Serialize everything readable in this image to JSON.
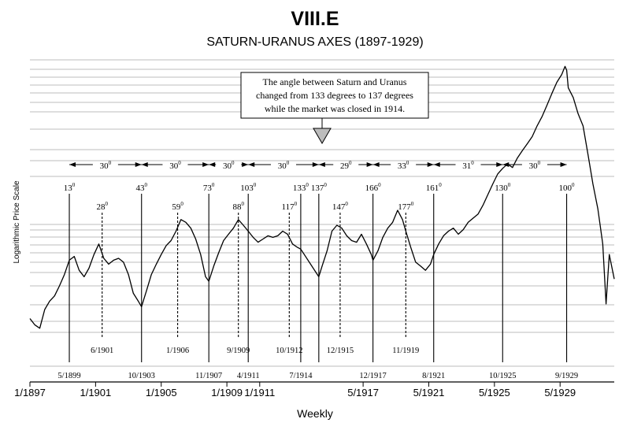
{
  "chart_data": {
    "type": "line",
    "title": "VIII.E",
    "subtitle": "SATURN-URANUS  AXES  (1897-1929)",
    "xlabel": "Weekly",
    "ylabel": "Logarithmic  Price  Scale",
    "y_scale": "log",
    "grid": "horizontal",
    "x_range": [
      1897.0,
      1932.6
    ],
    "x_ticks": [
      {
        "label": "1/1897",
        "x": 1897.0
      },
      {
        "label": "1/1901",
        "x": 1901.0
      },
      {
        "label": "1/1905",
        "x": 1905.0
      },
      {
        "label": "1/1909",
        "x": 1909.0
      },
      {
        "label": "1/1911",
        "x": 1911.0
      },
      {
        "label": "5/1917",
        "x": 1917.3
      },
      {
        "label": "5/1921",
        "x": 1921.3
      },
      {
        "label": "5/1925",
        "x": 1925.3
      },
      {
        "label": "5/1929",
        "x": 1929.3
      }
    ],
    "annotation": {
      "lines": [
        "The angle between Saturn and Uranus",
        "changed from 133 degrees to 137 degrees",
        "while the market was closed in 1914."
      ]
    },
    "intervals": [
      {
        "label": "30",
        "from": 1899.4,
        "to": 1903.8
      },
      {
        "label": "30",
        "from": 1903.8,
        "to": 1907.9
      },
      {
        "label": "30",
        "from": 1907.9,
        "to": 1910.3
      },
      {
        "label": "30",
        "from": 1910.3,
        "to": 1914.6
      },
      {
        "label": "29",
        "from": 1914.6,
        "to": 1917.9
      },
      {
        "label": "33",
        "from": 1917.9,
        "to": 1921.6
      },
      {
        "label": "31",
        "from": 1921.6,
        "to": 1925.8
      },
      {
        "label": "30",
        "from": 1925.8,
        "to": 1929.7
      }
    ],
    "solid_markers": [
      {
        "angle": "13",
        "date": "5/1899",
        "x": 1899.4
      },
      {
        "angle": "43",
        "date": "10/1903",
        "x": 1903.8
      },
      {
        "angle": "73",
        "date": "11/1907",
        "x": 1907.9
      },
      {
        "angle": "103",
        "date": "4/1911",
        "x": 1910.3
      },
      {
        "angle": "133",
        "date": "7/1914",
        "x": 1913.5
      },
      {
        "angle": "137",
        "date": "",
        "x": 1914.6
      },
      {
        "angle": "166",
        "date": "12/1917",
        "x": 1917.9
      },
      {
        "angle": "161",
        "date": "8/1921",
        "x": 1921.6
      },
      {
        "angle": "130",
        "date": "10/1925",
        "x": 1925.8
      },
      {
        "angle": "100",
        "date": "9/1929",
        "x": 1929.7
      }
    ],
    "dashed_markers": [
      {
        "angle": "28",
        "date": "6/1901",
        "x": 1901.4
      },
      {
        "angle": "59",
        "date": "1/1906",
        "x": 1906.0
      },
      {
        "angle": "88",
        "date": "9/1909",
        "x": 1909.7
      },
      {
        "angle": "117",
        "date": "10/1912",
        "x": 1912.8
      },
      {
        "angle": "147",
        "date": "12/1915",
        "x": 1915.9
      },
      {
        "angle": "177",
        "date": "11/1919",
        "x": 1919.9
      }
    ],
    "series": [
      {
        "x": [
          1897.0,
          1897.3,
          1897.6,
          1897.9,
          1898.2,
          1898.5,
          1898.8,
          1899.1,
          1899.4,
          1899.7,
          1900.0,
          1900.3,
          1900.6,
          1900.9,
          1901.2,
          1901.5,
          1901.8,
          1902.1,
          1902.4,
          1902.7,
          1903.0,
          1903.3,
          1903.6,
          1903.8,
          1904.1,
          1904.4,
          1904.7,
          1905.0,
          1905.3,
          1905.6,
          1905.9,
          1906.2,
          1906.5,
          1906.8,
          1907.1,
          1907.4,
          1907.7,
          1907.9,
          1908.2,
          1908.5,
          1908.8,
          1909.1,
          1909.4,
          1909.7,
          1910.0,
          1910.3,
          1910.6,
          1910.9,
          1911.2,
          1911.5,
          1911.8,
          1912.1,
          1912.4,
          1912.7,
          1913.0,
          1913.3,
          1913.5,
          1914.6,
          1914.8,
          1915.1,
          1915.4,
          1915.7,
          1916.0,
          1916.3,
          1916.6,
          1916.9,
          1917.2,
          1917.5,
          1917.8,
          1917.9,
          1918.2,
          1918.5,
          1918.8,
          1919.1,
          1919.4,
          1919.7,
          1919.9,
          1920.2,
          1920.5,
          1920.8,
          1921.1,
          1921.4,
          1921.6,
          1921.9,
          1922.2,
          1922.5,
          1922.8,
          1923.1,
          1923.4,
          1923.7,
          1924.0,
          1924.3,
          1924.6,
          1924.9,
          1925.2,
          1925.5,
          1925.8,
          1926.1,
          1926.4,
          1926.7,
          1927.0,
          1927.3,
          1927.6,
          1927.9,
          1928.2,
          1928.5,
          1928.8,
          1929.1,
          1929.4,
          1929.6,
          1929.7,
          1929.8,
          1930.1,
          1930.4,
          1930.7,
          1931.0,
          1931.3,
          1931.6,
          1931.9,
          1932.1,
          1932.3,
          1932.6
        ],
        "values": [
          39,
          37,
          36,
          42,
          45,
          47,
          51,
          56,
          63,
          65,
          58,
          55,
          59,
          66,
          72,
          64,
          61,
          63,
          64,
          62,
          56,
          48,
          45,
          43,
          49,
          56,
          61,
          66,
          71,
          74,
          80,
          88,
          86,
          82,
          75,
          66,
          55,
          53,
          60,
          67,
          74,
          78,
          82,
          88,
          84,
          80,
          76,
          73,
          75,
          77,
          76,
          77,
          80,
          78,
          72,
          70,
          69,
          55,
          60,
          68,
          80,
          84,
          82,
          77,
          74,
          73,
          78,
          72,
          66,
          63,
          68,
          76,
          82,
          86,
          95,
          88,
          80,
          70,
          62,
          60,
          58,
          61,
          66,
          72,
          77,
          80,
          82,
          78,
          81,
          86,
          89,
          92,
          99,
          108,
          118,
          128,
          134,
          139,
          135,
          146,
          155,
          164,
          174,
          190,
          205,
          225,
          248,
          272,
          290,
          310,
          300,
          260,
          240,
          210,
          190,
          150,
          118,
          96,
          72,
          44,
          66,
          54
        ]
      }
    ]
  }
}
